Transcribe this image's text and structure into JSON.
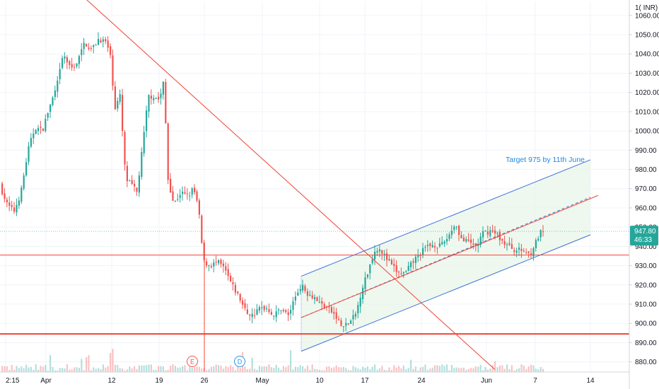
{
  "chart_data": {
    "type": "candlestick",
    "currency": "INR",
    "y_axis": {
      "ticks": [
        880,
        890,
        900,
        910,
        920,
        930,
        940,
        950,
        960,
        970,
        980,
        990,
        1000,
        1010,
        1020,
        1030,
        1040,
        1050,
        1060
      ],
      "tick_labels": [
        "880.00",
        "890.00",
        "900.00",
        "910.00",
        "920.00",
        "930.00",
        "940.00",
        "950.00",
        "960.00",
        "970.00",
        "980.00",
        "990.00",
        "1000.00",
        "1010.00",
        "1020.00",
        "1030.00",
        "1040.00",
        "1050.00",
        "1060.00"
      ],
      "range": [
        876,
        1066
      ],
      "position": "right"
    },
    "x_axis": {
      "tick_labels": [
        "2:15",
        "Apr",
        "12",
        "19",
        "26",
        "May",
        "10",
        "17",
        "24",
        "Jun",
        "7",
        "14"
      ]
    },
    "price_tag": {
      "price": "947.80",
      "countdown": "46:33",
      "color": "#26a69a"
    },
    "currency_label": "INR",
    "annotations": [
      {
        "text": "Target 975 by 11th June",
        "color": "#1e88e5"
      }
    ],
    "event_markers": [
      {
        "label": "E",
        "color": "#ef5350"
      },
      {
        "label": "D",
        "color": "#2196f3"
      }
    ],
    "horizontal_levels": [
      935.5,
      894.5
    ],
    "trendline_downtrend": {
      "from_price": 1070,
      "to_price": 876
    },
    "channel": {
      "upper_from": 924.5,
      "upper_to": 985,
      "lower_from": 885.5,
      "lower_to": 946,
      "mid_from": 903,
      "mid_to": 965.5
    },
    "series_last": {
      "close": 947.8
    },
    "colors": {
      "up": "#26a69a",
      "down": "#ef5350",
      "trend": "#f44336",
      "channel": "#2962ff",
      "fill": "#e8f5e9"
    }
  }
}
